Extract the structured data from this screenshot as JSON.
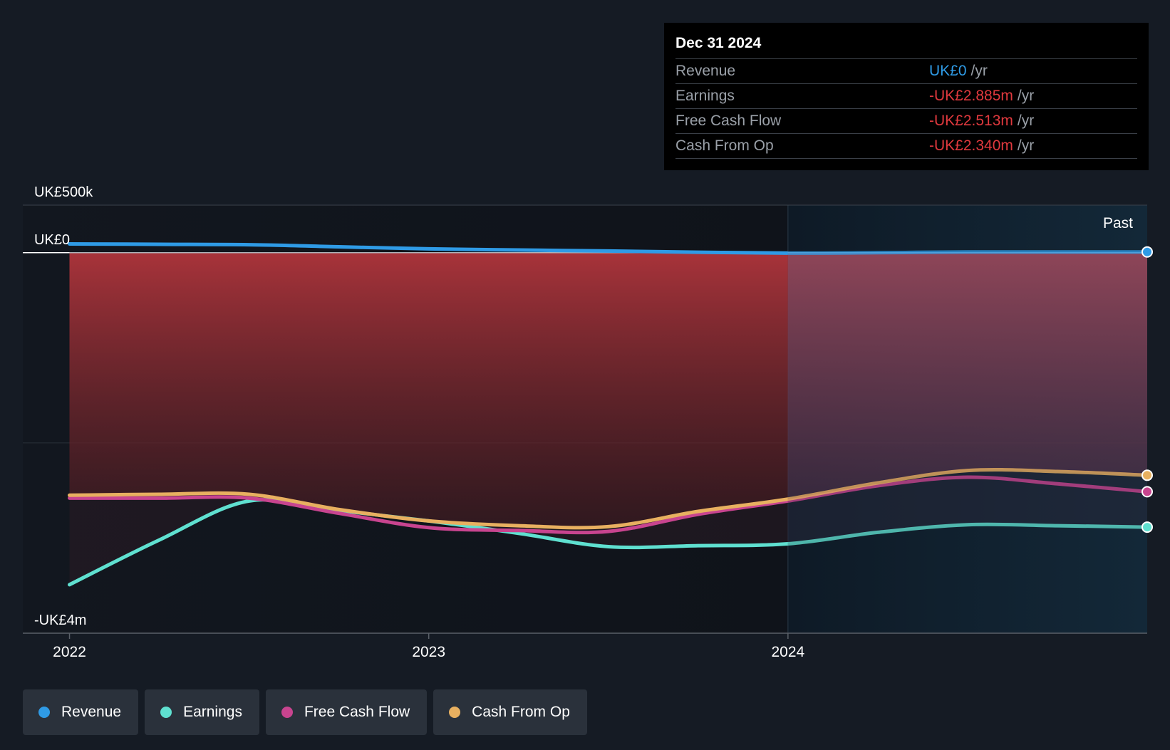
{
  "colors": {
    "background": "#151b24",
    "revenue": "#2f9be6",
    "earnings": "#5fe0d0",
    "free_cash_flow": "#c8448f",
    "cash_from_op": "#e8b060",
    "negative": "#e0393e",
    "text": "#ffffff",
    "muted": "#9aa0a8"
  },
  "tooltip": {
    "date": "Dec 31 2024",
    "rows": [
      {
        "label": "Revenue",
        "value": "UK£0",
        "unit": "/yr",
        "color": "#2f9be6"
      },
      {
        "label": "Earnings",
        "value": "-UK£2.885m",
        "unit": "/yr",
        "color": "#e0393e"
      },
      {
        "label": "Free Cash Flow",
        "value": "-UK£2.513m",
        "unit": "/yr",
        "color": "#e0393e"
      },
      {
        "label": "Cash From Op",
        "value": "-UK£2.340m",
        "unit": "/yr",
        "color": "#e0393e"
      }
    ]
  },
  "legend": [
    {
      "label": "Revenue",
      "color": "#2f9be6"
    },
    {
      "label": "Earnings",
      "color": "#5fe0d0"
    },
    {
      "label": "Free Cash Flow",
      "color": "#c8448f"
    },
    {
      "label": "Cash From Op",
      "color": "#e8b060"
    }
  ],
  "chart_data": {
    "type": "line",
    "title": "",
    "xlabel": "",
    "ylabel": "",
    "unit": "UK£ thousands",
    "y_tick_labels": [
      {
        "value": 500,
        "label": "UK£500k"
      },
      {
        "value": 0,
        "label": "UK£0"
      },
      {
        "value": -4000,
        "label": "-UK£4m"
      }
    ],
    "x_tick_labels": [
      {
        "value": 2022.0,
        "label": "2022"
      },
      {
        "value": 2023.0,
        "label": "2023"
      },
      {
        "value": 2024.0,
        "label": "2024"
      }
    ],
    "ylim": [
      -4000,
      500
    ],
    "xlim": [
      2021.87,
      2025.0
    ],
    "past_label": "Past",
    "past_start": 2024.0,
    "grid": "horizontal",
    "series": [
      {
        "name": "Revenue",
        "color": "#2f9be6",
        "x": [
          2022.0,
          2022.25,
          2022.5,
          2022.75,
          2023.0,
          2023.25,
          2023.5,
          2023.75,
          2024.0,
          2024.25,
          2024.5,
          2024.75,
          2025.0
        ],
        "y": [
          92,
          88,
          84,
          62,
          40,
          28,
          18,
          5,
          -5,
          0,
          8,
          8,
          8
        ]
      },
      {
        "name": "Earnings",
        "color": "#5fe0d0",
        "x": [
          2022.0,
          2022.25,
          2022.5,
          2022.75,
          2023.0,
          2023.25,
          2023.5,
          2023.75,
          2024.0,
          2024.25,
          2024.5,
          2024.75,
          2025.0
        ],
        "y": [
          -3490,
          -3020,
          -2610,
          -2710,
          -2820,
          -2950,
          -3090,
          -3080,
          -3060,
          -2940,
          -2860,
          -2870,
          -2885
        ]
      },
      {
        "name": "Free Cash Flow",
        "color": "#c8448f",
        "x": [
          2022.0,
          2022.25,
          2022.5,
          2022.75,
          2023.0,
          2023.25,
          2023.5,
          2023.75,
          2024.0,
          2024.25,
          2024.5,
          2024.75,
          2025.0
        ],
        "y": [
          -2580,
          -2580,
          -2580,
          -2740,
          -2890,
          -2920,
          -2930,
          -2750,
          -2610,
          -2450,
          -2360,
          -2430,
          -2513
        ]
      },
      {
        "name": "Cash From Op",
        "color": "#e8b060",
        "x": [
          2022.0,
          2022.25,
          2022.5,
          2022.75,
          2023.0,
          2023.25,
          2023.5,
          2023.75,
          2024.0,
          2024.25,
          2024.5,
          2024.75,
          2025.0
        ],
        "y": [
          -2550,
          -2540,
          -2540,
          -2700,
          -2820,
          -2870,
          -2880,
          -2720,
          -2590,
          -2420,
          -2290,
          -2300,
          -2340
        ]
      }
    ]
  }
}
